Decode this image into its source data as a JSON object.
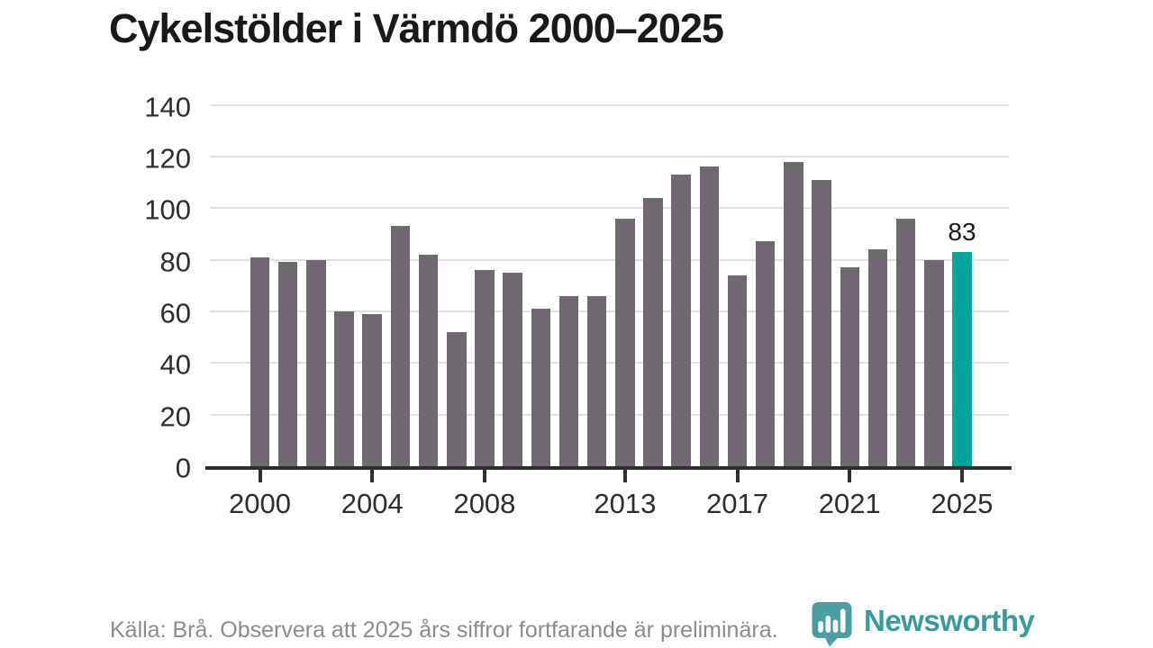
{
  "title": "Cykelstölder i Värmdö 2000–2025",
  "chart_data": {
    "type": "bar",
    "title": "Cykelstölder i Värmdö 2000–2025",
    "xlabel": "",
    "ylabel": "",
    "ylim": [
      0,
      140
    ],
    "grid": true,
    "legend": false,
    "categories": [
      2000,
      2001,
      2002,
      2003,
      2004,
      2005,
      2006,
      2007,
      2008,
      2009,
      2010,
      2011,
      2012,
      2013,
      2014,
      2015,
      2016,
      2017,
      2018,
      2019,
      2020,
      2021,
      2022,
      2023,
      2024,
      2025
    ],
    "values": [
      81,
      79,
      80,
      60,
      59,
      93,
      82,
      52,
      76,
      75,
      61,
      66,
      66,
      96,
      104,
      113,
      116,
      74,
      87,
      118,
      111,
      77,
      84,
      96,
      80,
      83
    ],
    "yticks": [
      0,
      20,
      40,
      60,
      80,
      100,
      120,
      140
    ],
    "xtick_years": [
      2000,
      2004,
      2008,
      2013,
      2017,
      2021,
      2025
    ],
    "bar_color": "#6d696f",
    "highlight": {
      "category": 2025,
      "value": 83,
      "label": "83",
      "color": "#00a39a"
    },
    "gridline_color": "#e0e0e0",
    "axis_color": "#2f2f2f"
  },
  "source_note": "Källa: Brå. Observera att 2025 års siffror fortfarande är preliminära.",
  "branding": {
    "wordmark": "Newsworthy",
    "icon": "speech-bubble-bar-chart",
    "brand_color": "#399a9e",
    "icon_color": "#4a9da0"
  },
  "colors": {
    "title_text": "#191919",
    "tick_label_text": "#2e2e2e",
    "value_label_text": "#1a1a1a",
    "source_text": "#8c8c8c",
    "background": "#ffffff"
  }
}
